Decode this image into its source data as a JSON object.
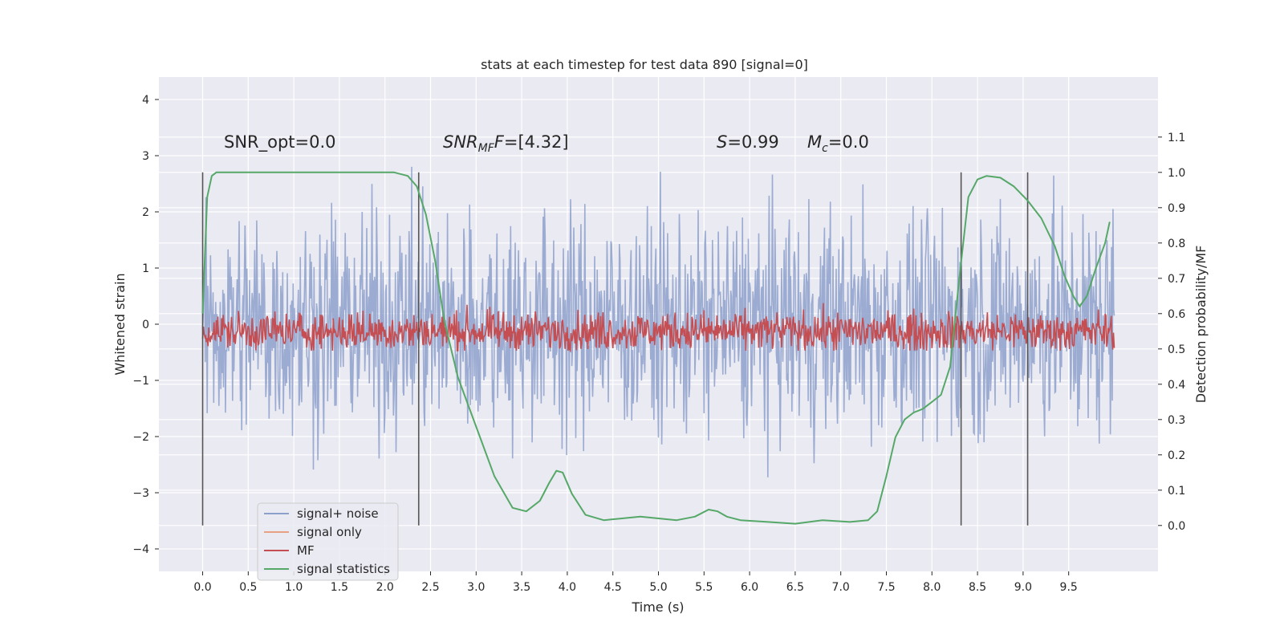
{
  "chart_data": {
    "type": "line",
    "title": "stats at each timestep for test data 890 [signal=0]",
    "xlabel": "Time (s)",
    "ylabel": "Whitened strain",
    "y2label": "Detection probability/MF",
    "xlim": [
      -0.48,
      10.48
    ],
    "ylim": [
      -4.4,
      4.4
    ],
    "y2lim": [
      -0.13,
      1.27
    ],
    "xticks": [
      "0.0",
      "0.5",
      "1.0",
      "1.5",
      "2.0",
      "2.5",
      "3.0",
      "3.5",
      "4.0",
      "4.5",
      "5.0",
      "5.5",
      "6.0",
      "6.5",
      "7.0",
      "7.5",
      "8.0",
      "8.5",
      "9.0",
      "9.5"
    ],
    "yticks": [
      "4",
      "3",
      "2",
      "1",
      "0",
      "−1",
      "−2",
      "−3",
      "−4"
    ],
    "y2ticks": [
      "1.1",
      "1.0",
      "0.9",
      "0.8",
      "0.7",
      "0.6",
      "0.5",
      "0.4",
      "0.3",
      "0.2",
      "0.1",
      "0.0"
    ],
    "grid": true,
    "legend_position": "lower-left",
    "annotations": {
      "snr_opt": "SNR_opt=0.0",
      "snr_mf_prefix": "SNR",
      "snr_mf_sub": "MF",
      "snr_mf_value": "=[4.32]",
      "s_prefix": "S",
      "s_value": "=0.99",
      "mc_prefix": "M",
      "mc_sub": "c",
      "mc_value": "=0.0"
    },
    "vertical_markers": [
      0.0,
      2.37,
      8.32,
      9.05
    ],
    "series": [
      {
        "name": "signal+ noise",
        "color": "#8da0cb",
        "axis": "left",
        "kind": "noise",
        "amplitude": 1.0,
        "range": [
          0.0,
          10.0
        ]
      },
      {
        "name": "signal only",
        "color": "#e8a283",
        "axis": "left",
        "kind": "flat",
        "values": []
      },
      {
        "name": "MF",
        "color": "#c44e52",
        "axis": "right",
        "kind": "noise",
        "mean": 0.55,
        "amplitude": 0.05,
        "range": [
          0.0,
          10.0
        ]
      },
      {
        "name": "signal statistics",
        "color": "#55a868",
        "axis": "right",
        "x": [
          0.0,
          0.05,
          0.1,
          0.15,
          0.3,
          0.6,
          1.0,
          1.5,
          1.9,
          2.1,
          2.25,
          2.35,
          2.45,
          2.55,
          2.65,
          2.8,
          3.0,
          3.2,
          3.4,
          3.55,
          3.7,
          3.8,
          3.88,
          3.95,
          4.05,
          4.2,
          4.4,
          4.6,
          4.8,
          5.0,
          5.2,
          5.4,
          5.55,
          5.65,
          5.75,
          5.9,
          6.2,
          6.5,
          6.8,
          7.1,
          7.3,
          7.4,
          7.5,
          7.6,
          7.7,
          7.8,
          7.9,
          8.0,
          8.1,
          8.2,
          8.3,
          8.4,
          8.5,
          8.6,
          8.75,
          8.9,
          9.05,
          9.2,
          9.35,
          9.45,
          9.55,
          9.62,
          9.7,
          9.8,
          9.9,
          9.95
        ],
        "y": [
          0.6,
          0.93,
          0.99,
          1.0,
          1.0,
          1.0,
          1.0,
          1.0,
          1.0,
          1.0,
          0.99,
          0.96,
          0.88,
          0.75,
          0.58,
          0.42,
          0.28,
          0.14,
          0.05,
          0.04,
          0.07,
          0.12,
          0.155,
          0.15,
          0.09,
          0.03,
          0.015,
          0.02,
          0.025,
          0.02,
          0.015,
          0.025,
          0.045,
          0.04,
          0.025,
          0.015,
          0.01,
          0.005,
          0.015,
          0.01,
          0.015,
          0.04,
          0.14,
          0.25,
          0.3,
          0.32,
          0.33,
          0.35,
          0.37,
          0.45,
          0.7,
          0.93,
          0.98,
          0.99,
          0.985,
          0.96,
          0.92,
          0.87,
          0.79,
          0.71,
          0.65,
          0.62,
          0.65,
          0.73,
          0.8,
          0.86
        ]
      }
    ]
  }
}
